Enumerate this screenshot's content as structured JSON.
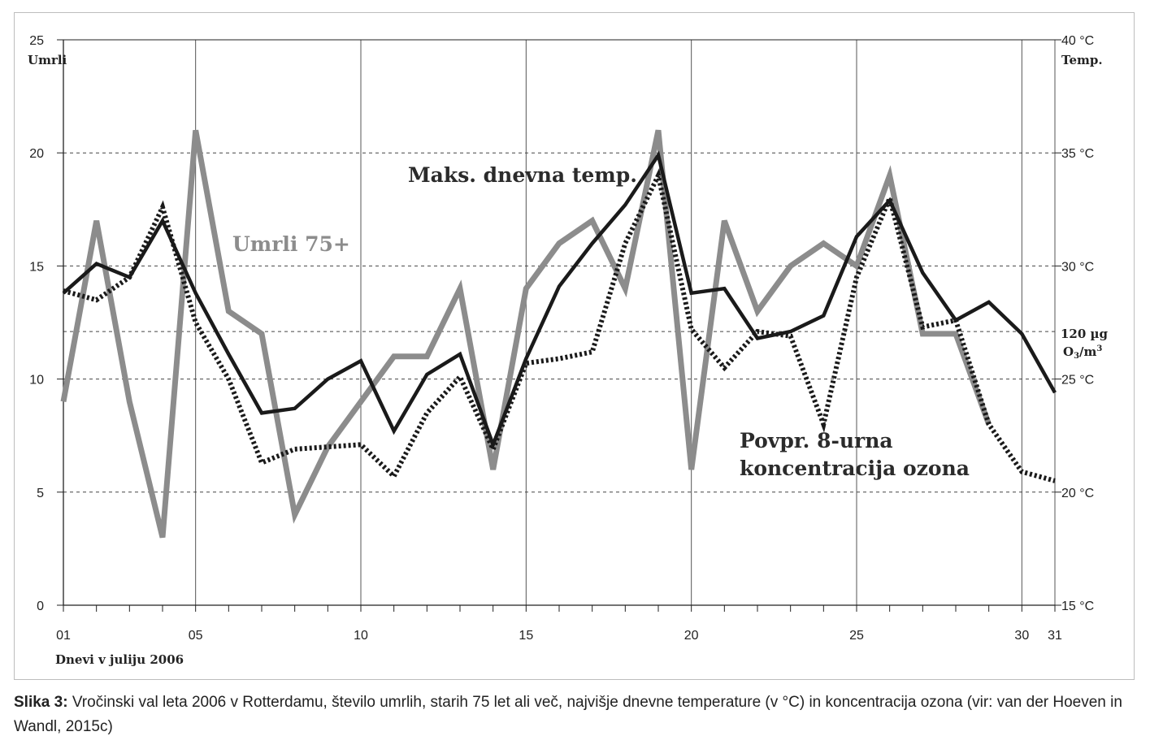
{
  "caption": {
    "prefix": "Slika 3:",
    "text": " Vročinski val leta 2006 v Rotterdamu, število umrlih, starih 75 let ali več, najvišje dnevne temperature (v °C) in koncentracija ozona (vir: van der Hoeven in Wandl, 2015c)"
  },
  "chart_data": {
    "type": "line",
    "title": "",
    "xlabel": "Dnevi v juliju 2006",
    "ylabel_left": "Umrli",
    "ylabel_right": "Temp.",
    "x_range": [
      1,
      31
    ],
    "ylim_left": [
      0,
      25
    ],
    "ylim_right": [
      15,
      40
    ],
    "x_tick_labels": [
      "01",
      "05",
      "10",
      "15",
      "20",
      "25",
      "30",
      "31"
    ],
    "x_tick_values": [
      1,
      5,
      10,
      15,
      20,
      25,
      30,
      31
    ],
    "left_ticks": [
      "0",
      "5",
      "10",
      "15",
      "20",
      "25"
    ],
    "right_ticks": [
      "15 °C",
      "20 °C",
      "25 °C",
      "30 °C",
      "35 °C",
      "40 °C"
    ],
    "ozone_threshold": {
      "label_line1": "120 µg",
      "label_line2": "O",
      "label_sub": "3",
      "label_mid": "/m",
      "label_sup": "3",
      "value_left_axis": 12.1
    },
    "grid": true,
    "series": [
      {
        "name": "Umrli 75+",
        "axis": "left",
        "color": "#8c8c8c",
        "style": "solid",
        "x": [
          1,
          2,
          3,
          4,
          5,
          6,
          7,
          8,
          9,
          10,
          11,
          12,
          13,
          14,
          15,
          16,
          17,
          18,
          19,
          20,
          21,
          22,
          23,
          24,
          25,
          26,
          27,
          28,
          29
        ],
        "values": [
          9,
          17,
          9,
          3,
          21,
          13,
          12,
          4,
          7,
          9,
          11,
          11,
          14,
          6,
          14,
          16,
          17,
          14,
          21,
          6,
          17,
          13,
          15,
          16,
          15,
          19,
          12,
          12,
          8
        ]
      },
      {
        "name": "Maks. dnevna temp.",
        "axis": "right",
        "color": "#1a1a1a",
        "style": "solid",
        "x": [
          1,
          2,
          3,
          4,
          5,
          6,
          7,
          8,
          9,
          10,
          11,
          12,
          13,
          14,
          15,
          16,
          17,
          18,
          19,
          20,
          21,
          22,
          23,
          24,
          25,
          26,
          27,
          28,
          29,
          30,
          31
        ],
        "values": [
          28.8,
          30.1,
          29.5,
          32.0,
          28.8,
          26.1,
          23.5,
          23.7,
          25.0,
          25.8,
          22.7,
          25.2,
          26.1,
          22.1,
          25.9,
          29.1,
          31.0,
          32.7,
          34.9,
          28.8,
          29.0,
          26.8,
          27.1,
          27.8,
          31.3,
          32.9,
          29.7,
          27.6,
          28.4,
          27.0,
          24.4
        ]
      },
      {
        "name": "Povpr. 8-urna koncentracija ozona",
        "axis": "left",
        "color": "#1a1a1a",
        "style": "dotted",
        "x": [
          1,
          2,
          3,
          4,
          5,
          6,
          7,
          8,
          9,
          10,
          11,
          12,
          13,
          14,
          15,
          16,
          17,
          18,
          19,
          20,
          21,
          22,
          23,
          24,
          25,
          26,
          27,
          28,
          29,
          30,
          31
        ],
        "values": [
          13.9,
          13.5,
          14.5,
          17.6,
          12.5,
          10.0,
          6.3,
          6.9,
          7.0,
          7.1,
          5.7,
          8.5,
          10.1,
          6.9,
          10.7,
          10.9,
          11.2,
          16.0,
          19.0,
          12.2,
          10.5,
          12.1,
          11.9,
          8.0,
          14.5,
          18.0,
          12.3,
          12.6,
          8.0,
          5.9,
          5.5
        ]
      }
    ]
  }
}
